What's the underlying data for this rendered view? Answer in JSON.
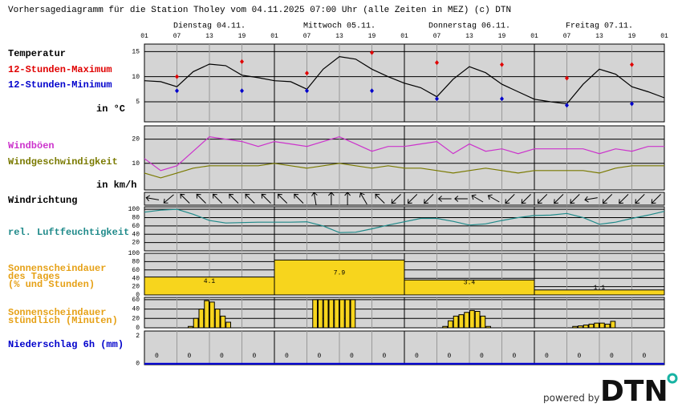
{
  "title": "Vorhersagediagramm für die Station Tholey vom 04.11.2025 07:00 Uhr (alle Zeiten in MEZ)   (c) DTN",
  "days": [
    "Dienstag 04.11.",
    "Mittwoch 05.11.",
    "Donnerstag 06.11.",
    "Freitag 07.11."
  ],
  "hour_ticks": [
    {
      "value": 0,
      "label": "01"
    },
    {
      "value": 6,
      "label": "07"
    },
    {
      "value": 12,
      "label": "13"
    },
    {
      "value": 18,
      "label": "19"
    },
    {
      "value": 24,
      "label": "01"
    },
    {
      "value": 30,
      "label": "07"
    },
    {
      "value": 36,
      "label": "13"
    },
    {
      "value": 42,
      "label": "19"
    },
    {
      "value": 48,
      "label": "01"
    },
    {
      "value": 54,
      "label": "07"
    },
    {
      "value": 60,
      "label": "13"
    },
    {
      "value": 66,
      "label": "19"
    },
    {
      "value": 72,
      "label": "01"
    },
    {
      "value": 78,
      "label": "07"
    },
    {
      "value": 84,
      "label": "13"
    },
    {
      "value": 90,
      "label": "19"
    },
    {
      "value": 96,
      "label": "01"
    }
  ],
  "credit": "powered by",
  "logo": "DTN",
  "chart_data": [
    {
      "type": "line",
      "ylabel": "in °C",
      "ylim": [
        1,
        16.5
      ],
      "yticks": [
        5,
        10,
        15
      ],
      "grid": true,
      "x": [
        0,
        3,
        6,
        9,
        12,
        15,
        18,
        21,
        24,
        27,
        30,
        33,
        36,
        39,
        42,
        45,
        48,
        51,
        54,
        57,
        60,
        63,
        66,
        69,
        72,
        75,
        78,
        81,
        84,
        87,
        90,
        93,
        96
      ],
      "series": [
        {
          "name": "Temperatur",
          "color": "#000000",
          "values": [
            9.2,
            9.0,
            8.0,
            11.0,
            12.5,
            12.2,
            10.3,
            9.8,
            9.2,
            9.0,
            7.5,
            11.5,
            14.0,
            13.5,
            11.5,
            10.0,
            8.7,
            7.8,
            6.0,
            9.5,
            12.0,
            10.8,
            8.5,
            7.0,
            5.5,
            5.0,
            4.6,
            8.5,
            11.5,
            10.5,
            8.0,
            7.0,
            5.8
          ]
        },
        {
          "name": "12-Stunden-Maximum",
          "color": "#e00000",
          "type": "scatter",
          "x": [
            6,
            18,
            30,
            42,
            54,
            66,
            78,
            90
          ],
          "values": [
            10,
            13,
            10.7,
            14.8,
            12.8,
            12.4,
            9.7,
            12.4
          ]
        },
        {
          "name": "12-Stunden-Minimum",
          "color": "#0000cc",
          "type": "scatter",
          "x": [
            6,
            18,
            30,
            42,
            54,
            66,
            78,
            90
          ],
          "values": [
            7.2,
            7.2,
            7.2,
            7.2,
            5.6,
            5.6,
            4.3,
            4.6
          ]
        }
      ]
    },
    {
      "type": "line",
      "ylabel": "in km/h",
      "ylim": [
        -1,
        25.5
      ],
      "yticks": [
        10,
        20
      ],
      "grid": true,
      "x": [
        0,
        3,
        6,
        9,
        12,
        15,
        18,
        21,
        24,
        27,
        30,
        33,
        36,
        39,
        42,
        45,
        48,
        51,
        54,
        57,
        60,
        63,
        66,
        69,
        72,
        75,
        78,
        81,
        84,
        87,
        90,
        93,
        96
      ],
      "series": [
        {
          "name": "Windböen",
          "color": "#cc33cc",
          "values": [
            12,
            7,
            9,
            15,
            21,
            20,
            19,
            17,
            19,
            18,
            17,
            19,
            21,
            18,
            15,
            17,
            17,
            18,
            19,
            14,
            18,
            15,
            16,
            14,
            16,
            16,
            16,
            16,
            14,
            16,
            15,
            17,
            17
          ]
        },
        {
          "name": "Windgeschwindigkeit",
          "color": "#7a7a00",
          "values": [
            6,
            4,
            6,
            8,
            9,
            9,
            9,
            9,
            10,
            9,
            8,
            9,
            10,
            9,
            8,
            9,
            8,
            8,
            7,
            6,
            7,
            8,
            7,
            6,
            7,
            7,
            7,
            7,
            6,
            8,
            9,
            9,
            9
          ]
        }
      ]
    },
    {
      "type": "arrows",
      "name": "Windrichtung",
      "color": "#000000",
      "values": [
        100,
        50,
        135,
        135,
        135,
        135,
        135,
        135,
        135,
        135,
        170,
        180,
        180,
        150,
        135,
        45,
        45,
        45,
        90,
        90,
        120,
        120,
        45,
        45,
        45,
        45,
        45,
        80,
        45,
        45,
        45,
        45
      ]
    },
    {
      "type": "line",
      "ylim": [
        0,
        106
      ],
      "yticks": [
        20,
        40,
        60,
        80,
        100
      ],
      "grid": true,
      "x": [
        0,
        3,
        6,
        9,
        12,
        15,
        18,
        21,
        24,
        27,
        30,
        33,
        36,
        39,
        42,
        45,
        48,
        51,
        54,
        57,
        60,
        63,
        66,
        69,
        72,
        75,
        78,
        81,
        84,
        87,
        90,
        93,
        96
      ],
      "series": [
        {
          "name": "rel. Luftfeuchtigkeit",
          "color": "#1f8a8a",
          "values": [
            93,
            98,
            100,
            88,
            73,
            67,
            68,
            69,
            69,
            69,
            70,
            60,
            44,
            45,
            53,
            62,
            70,
            78,
            78,
            71,
            62,
            65,
            73,
            80,
            85,
            86,
            90,
            80,
            64,
            69,
            78,
            86,
            95
          ]
        }
      ]
    },
    {
      "type": "bar",
      "label_lines": [
        "Sonnenscheindauer",
        "des Tages",
        "(% und Stunden)"
      ],
      "label_color": "#e6a117",
      "color": "#f7d51d",
      "ylim": [
        0,
        100
      ],
      "yticks": [
        0,
        20,
        40,
        60,
        80,
        100
      ],
      "grid": true,
      "values": [
        43,
        84,
        36,
        12
      ],
      "hours": [
        4.1,
        7.9,
        3.4,
        1.1
      ]
    },
    {
      "type": "bar",
      "label_lines": [
        "Sonnenscheindauer",
        "stündlich (Minuten)"
      ],
      "label_color": "#e6a117",
      "color": "#f7d51d",
      "ylim": [
        0,
        65
      ],
      "yticks": [
        0,
        20,
        40,
        60
      ],
      "grid": true,
      "values": [
        0,
        0,
        0,
        0,
        0,
        0,
        0,
        0,
        3,
        20,
        40,
        58,
        55,
        40,
        25,
        12,
        0,
        0,
        0,
        0,
        0,
        0,
        0,
        0,
        0,
        0,
        0,
        0,
        0,
        0,
        0,
        60,
        60,
        60,
        60,
        60,
        60,
        60,
        60,
        0,
        0,
        0,
        0,
        0,
        0,
        0,
        0,
        0,
        0,
        0,
        0,
        0,
        0,
        0,
        0,
        3,
        15,
        25,
        28,
        33,
        37,
        35,
        25,
        3,
        0,
        0,
        0,
        0,
        0,
        0,
        0,
        0,
        0,
        0,
        0,
        0,
        0,
        0,
        0,
        3,
        4,
        6,
        8,
        10,
        10,
        8,
        14,
        0,
        0,
        0,
        0,
        0,
        0,
        0,
        0,
        0
      ]
    },
    {
      "type": "bar",
      "label_lines": [
        "Niederschlag 6h (mm)"
      ],
      "label_color": "#0000cc",
      "color": "#0000cc",
      "ylim": [
        -0.1,
        2.35
      ],
      "yticks": [
        0,
        2
      ],
      "grid": false,
      "values": [
        0,
        0,
        0,
        0,
        0,
        0,
        0,
        0,
        0,
        0,
        0,
        0,
        0,
        0,
        0,
        0
      ]
    }
  ]
}
